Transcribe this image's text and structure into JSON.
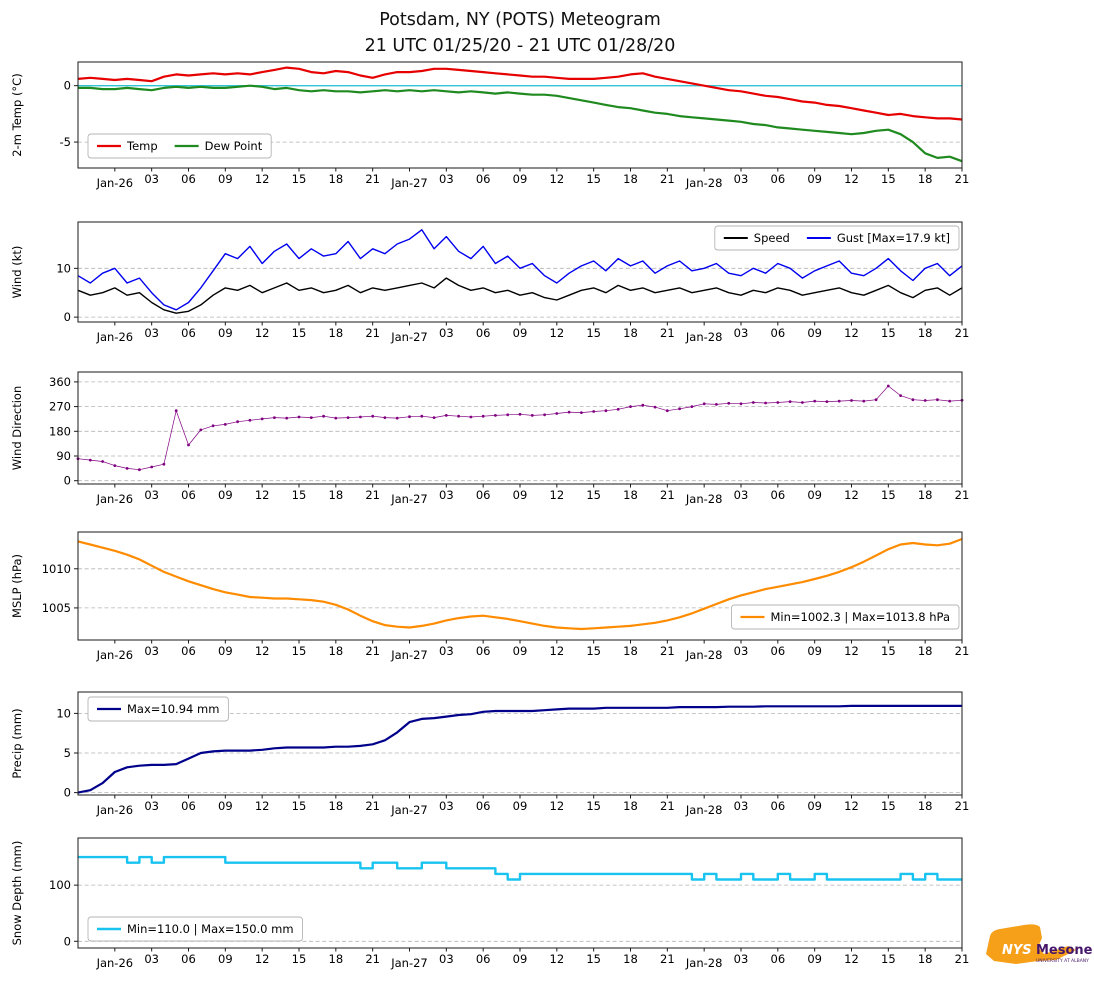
{
  "title": {
    "line1": "Potsdam, NY (POTS) Meteogram",
    "line2": "21 UTC 01/25/20 - 21 UTC 01/28/20"
  },
  "x_axis": {
    "tick_hours": [
      3,
      6,
      9,
      12,
      15,
      18,
      21,
      24,
      27,
      30,
      33,
      36,
      39,
      42,
      45,
      48,
      51,
      54,
      57,
      60,
      63,
      66,
      69,
      72
    ],
    "tick_labels": [
      "Jan-26",
      "03",
      "06",
      "09",
      "12",
      "15",
      "18",
      "21",
      "Jan-27",
      "03",
      "06",
      "09",
      "12",
      "15",
      "18",
      "21",
      "Jan-28",
      "03",
      "06",
      "09",
      "12",
      "15",
      "18",
      "21"
    ],
    "day_indices": [
      0,
      8,
      16
    ],
    "hours_span": 72
  },
  "logo": {
    "nys": "NYS",
    "mesonet": "Mesonet",
    "tagline": "UNIVERSITY AT ALBANY"
  },
  "chart_data": [
    {
      "id": "temp",
      "type": "line",
      "ylabel": "2-m Temp (°C)",
      "ylim": [
        -7.3,
        2.1
      ],
      "yticks": [
        {
          "v": -5,
          "label": "-5"
        },
        {
          "v": 0,
          "label": "0"
        }
      ],
      "zero_line": {
        "v": 0,
        "color": "#2fc3d4"
      },
      "series": [
        {
          "id": "temp-line",
          "label": "Temp",
          "color": "#e60000",
          "width": 2.2,
          "values": [
            0.6,
            0.7,
            0.6,
            0.5,
            0.6,
            0.5,
            0.4,
            0.8,
            1.0,
            0.9,
            1.0,
            1.1,
            1.0,
            1.1,
            1.0,
            1.2,
            1.4,
            1.6,
            1.5,
            1.2,
            1.1,
            1.3,
            1.2,
            0.9,
            0.7,
            1.0,
            1.2,
            1.2,
            1.3,
            1.5,
            1.5,
            1.4,
            1.3,
            1.2,
            1.1,
            1.0,
            0.9,
            0.8,
            0.8,
            0.7,
            0.6,
            0.6,
            0.6,
            0.7,
            0.8,
            1.0,
            1.1,
            0.8,
            0.6,
            0.4,
            0.2,
            0.0,
            -0.2,
            -0.4,
            -0.5,
            -0.7,
            -0.9,
            -1.0,
            -1.2,
            -1.4,
            -1.5,
            -1.7,
            -1.8,
            -2.0,
            -2.2,
            -2.4,
            -2.6,
            -2.5,
            -2.7,
            -2.8,
            -2.9,
            -2.9,
            -3.0
          ]
        },
        {
          "id": "dew-point-line",
          "label": "Dew Point",
          "color": "#1f8a1f",
          "width": 2.2,
          "values": [
            -0.2,
            -0.2,
            -0.3,
            -0.3,
            -0.2,
            -0.3,
            -0.4,
            -0.2,
            -0.1,
            -0.2,
            -0.1,
            -0.2,
            -0.2,
            -0.1,
            0.0,
            -0.1,
            -0.3,
            -0.2,
            -0.4,
            -0.5,
            -0.4,
            -0.5,
            -0.5,
            -0.6,
            -0.5,
            -0.4,
            -0.5,
            -0.4,
            -0.5,
            -0.4,
            -0.5,
            -0.6,
            -0.5,
            -0.6,
            -0.7,
            -0.6,
            -0.7,
            -0.8,
            -0.8,
            -0.9,
            -1.1,
            -1.3,
            -1.5,
            -1.7,
            -1.9,
            -2.0,
            -2.2,
            -2.4,
            -2.5,
            -2.7,
            -2.8,
            -2.9,
            -3.0,
            -3.1,
            -3.2,
            -3.4,
            -3.5,
            -3.7,
            -3.8,
            -3.9,
            -4.0,
            -4.1,
            -4.2,
            -4.3,
            -4.2,
            -4.0,
            -3.9,
            -4.3,
            -5.0,
            -6.0,
            -6.4,
            -6.3,
            -6.7
          ]
        }
      ],
      "legend": {
        "entries": [
          {
            "series": 0
          },
          {
            "series": 1
          }
        ]
      }
    },
    {
      "id": "wind",
      "type": "line",
      "ylabel": "Wind (kt)",
      "ylim": [
        -1,
        19.5
      ],
      "yticks": [
        {
          "v": 0,
          "label": "0"
        },
        {
          "v": 10,
          "label": "10"
        }
      ],
      "series": [
        {
          "id": "speed-line",
          "label": "Speed",
          "color": "#000000",
          "width": 1.4,
          "values": [
            5.5,
            4.5,
            5.0,
            6.0,
            4.5,
            5.0,
            3.0,
            1.5,
            0.8,
            1.2,
            2.5,
            4.5,
            6.0,
            5.5,
            6.5,
            5.0,
            6.0,
            7.0,
            5.5,
            6.0,
            5.0,
            5.5,
            6.5,
            5.0,
            6.0,
            5.5,
            6.0,
            6.5,
            7.0,
            6.0,
            8.0,
            6.5,
            5.5,
            6.0,
            5.0,
            5.5,
            4.5,
            5.0,
            4.0,
            3.5,
            4.5,
            5.5,
            6.0,
            5.0,
            6.5,
            5.5,
            6.0,
            5.0,
            5.5,
            6.0,
            5.0,
            5.5,
            6.0,
            5.0,
            4.5,
            5.5,
            5.0,
            6.0,
            5.5,
            4.5,
            5.0,
            5.5,
            6.0,
            5.0,
            4.5,
            5.5,
            6.5,
            5.0,
            4.0,
            5.5,
            6.0,
            4.5,
            6.0
          ]
        },
        {
          "id": "gust-line",
          "label": "Gust [Max=17.9 kt]",
          "color": "#0000ee",
          "width": 1.4,
          "values": [
            8.5,
            7.0,
            9.0,
            10.0,
            7.0,
            8.0,
            5.0,
            2.5,
            1.5,
            3.0,
            6.0,
            9.5,
            13.0,
            12.0,
            14.5,
            11.0,
            13.5,
            15.0,
            12.0,
            14.0,
            12.5,
            13.0,
            15.5,
            12.0,
            14.0,
            13.0,
            15.0,
            16.0,
            17.9,
            14.0,
            16.5,
            13.5,
            12.0,
            14.5,
            11.0,
            12.5,
            10.0,
            11.0,
            8.5,
            7.0,
            9.0,
            10.5,
            11.5,
            9.5,
            12.0,
            10.5,
            11.5,
            9.0,
            10.5,
            11.5,
            9.5,
            10.0,
            11.0,
            9.0,
            8.5,
            10.0,
            9.0,
            11.0,
            10.0,
            8.0,
            9.5,
            10.5,
            11.5,
            9.0,
            8.5,
            10.0,
            12.0,
            9.5,
            7.5,
            10.0,
            11.0,
            8.5,
            10.5
          ]
        }
      ],
      "legend": {
        "entries": [
          {
            "series": 0
          },
          {
            "series": 1
          }
        ]
      }
    },
    {
      "id": "wind-direction",
      "type": "scatter",
      "ylabel": "Wind Direction",
      "ylim": [
        -12,
        396
      ],
      "yticks": [
        {
          "v": 0,
          "label": "0"
        },
        {
          "v": 90,
          "label": "90"
        },
        {
          "v": 180,
          "label": "180"
        },
        {
          "v": 270,
          "label": "270"
        },
        {
          "v": 360,
          "label": "360"
        }
      ],
      "series": [
        {
          "id": "wind-direction-markers",
          "label": "Wind Direction",
          "color": "#800080",
          "width": 0.7,
          "markers": true,
          "values": [
            80,
            75,
            70,
            55,
            45,
            40,
            50,
            60,
            255,
            130,
            185,
            200,
            205,
            215,
            220,
            225,
            230,
            228,
            232,
            230,
            235,
            228,
            230,
            232,
            235,
            230,
            228,
            233,
            235,
            230,
            238,
            235,
            232,
            235,
            238,
            240,
            242,
            238,
            240,
            245,
            250,
            248,
            252,
            255,
            260,
            270,
            275,
            268,
            255,
            262,
            270,
            280,
            278,
            282,
            280,
            285,
            283,
            285,
            288,
            285,
            290,
            288,
            290,
            292,
            290,
            295,
            345,
            310,
            295,
            292,
            295,
            290,
            293
          ]
        }
      ],
      "legend": null
    },
    {
      "id": "mslp",
      "type": "line",
      "ylabel": "MSLP (hPa)",
      "ylim": [
        1000.9,
        1014.7
      ],
      "yticks": [
        {
          "v": 1005,
          "label": "1005"
        },
        {
          "v": 1010,
          "label": "1010"
        }
      ],
      "series": [
        {
          "id": "mslp-line",
          "label": "Min=1002.3 | Max=1013.8 hPa",
          "color": "#ff8c00",
          "width": 2.2,
          "values": [
            1013.5,
            1013.1,
            1012.7,
            1012.3,
            1011.8,
            1011.2,
            1010.4,
            1009.6,
            1009.0,
            1008.4,
            1007.9,
            1007.4,
            1007.0,
            1006.7,
            1006.4,
            1006.3,
            1006.2,
            1006.2,
            1006.1,
            1006.0,
            1005.8,
            1005.4,
            1004.8,
            1004.0,
            1003.3,
            1002.8,
            1002.6,
            1002.5,
            1002.7,
            1003.0,
            1003.4,
            1003.7,
            1003.9,
            1004.0,
            1003.8,
            1003.6,
            1003.3,
            1003.0,
            1002.7,
            1002.5,
            1002.4,
            1002.3,
            1002.4,
            1002.5,
            1002.6,
            1002.7,
            1002.9,
            1003.1,
            1003.4,
            1003.8,
            1004.3,
            1004.9,
            1005.5,
            1006.1,
            1006.6,
            1007.0,
            1007.4,
            1007.7,
            1008.0,
            1008.3,
            1008.7,
            1009.1,
            1009.6,
            1010.2,
            1010.9,
            1011.7,
            1012.5,
            1013.1,
            1013.3,
            1013.1,
            1013.0,
            1013.2,
            1013.8
          ]
        }
      ],
      "legend": {
        "entries": [
          {
            "series": 0
          }
        ]
      }
    },
    {
      "id": "precip",
      "type": "line",
      "ylabel": "Precip (mm)",
      "ylim": [
        -0.3,
        12.7
      ],
      "yticks": [
        {
          "v": 0,
          "label": "0"
        },
        {
          "v": 5,
          "label": "5"
        },
        {
          "v": 10,
          "label": "10"
        }
      ],
      "series": [
        {
          "id": "precip-line",
          "label": "Max=10.94 mm",
          "color": "#00008b",
          "width": 2.2,
          "values": [
            0.0,
            0.3,
            1.2,
            2.6,
            3.2,
            3.4,
            3.5,
            3.5,
            3.6,
            4.3,
            5.0,
            5.2,
            5.3,
            5.3,
            5.3,
            5.4,
            5.6,
            5.7,
            5.7,
            5.7,
            5.7,
            5.8,
            5.8,
            5.9,
            6.1,
            6.6,
            7.6,
            8.9,
            9.3,
            9.4,
            9.6,
            9.8,
            9.9,
            10.2,
            10.3,
            10.3,
            10.3,
            10.3,
            10.4,
            10.5,
            10.6,
            10.6,
            10.6,
            10.7,
            10.7,
            10.7,
            10.7,
            10.7,
            10.7,
            10.8,
            10.8,
            10.8,
            10.8,
            10.85,
            10.85,
            10.85,
            10.9,
            10.9,
            10.9,
            10.9,
            10.9,
            10.9,
            10.9,
            10.94,
            10.94,
            10.94,
            10.94,
            10.94,
            10.94,
            10.94,
            10.94,
            10.94,
            10.94
          ]
        }
      ],
      "legend": {
        "entries": [
          {
            "series": 0
          }
        ]
      }
    },
    {
      "id": "snow-depth",
      "type": "line",
      "ylabel": "Snow Depth (mm)",
      "ylim": [
        -12,
        184
      ],
      "yticks": [
        {
          "v": 0,
          "label": "0"
        },
        {
          "v": 100,
          "label": "100"
        }
      ],
      "series": [
        {
          "id": "snow-depth-line",
          "label": "Min=110.0 | Max=150.0 mm",
          "color": "#18c3f0",
          "width": 2.4,
          "interp": "step",
          "values": [
            150,
            150,
            150,
            150,
            140,
            150,
            140,
            150,
            150,
            150,
            150,
            150,
            140,
            140,
            140,
            140,
            140,
            140,
            140,
            140,
            140,
            140,
            140,
            130,
            140,
            140,
            130,
            130,
            140,
            140,
            130,
            130,
            130,
            130,
            120,
            110,
            120,
            120,
            120,
            120,
            120,
            120,
            120,
            120,
            120,
            120,
            120,
            120,
            120,
            120,
            110,
            120,
            110,
            110,
            120,
            110,
            110,
            120,
            110,
            110,
            120,
            110,
            110,
            110,
            110,
            110,
            110,
            120,
            110,
            120,
            110,
            110,
            110
          ]
        }
      ],
      "legend": {
        "entries": [
          {
            "series": 0
          }
        ]
      }
    }
  ]
}
